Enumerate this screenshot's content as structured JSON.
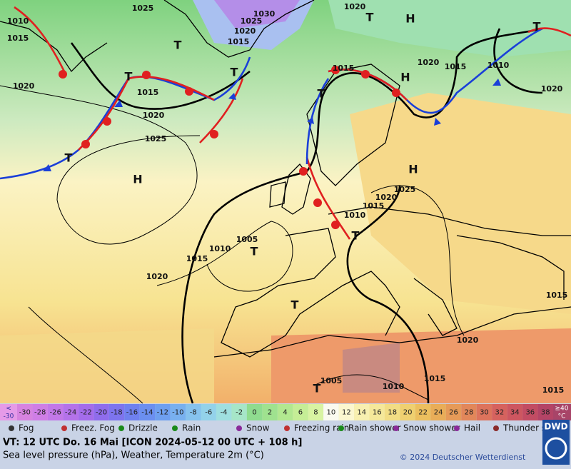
{
  "map": {
    "isobar_labels": [
      1025,
      1020,
      1010,
      1015,
      1030,
      1025,
      1020,
      1015,
      1020,
      1015,
      1020,
      1025,
      1015,
      1020,
      1015,
      1010,
      1020,
      1025,
      1020,
      1015,
      1010,
      1005,
      1010,
      1015,
      1020,
      1020,
      1015,
      1005,
      1010,
      1015,
      1015
    ],
    "pressure_centers": [
      "H",
      "T",
      "T",
      "T",
      "T",
      "H",
      "T",
      "H",
      "H",
      "T",
      "T",
      "T",
      "T",
      "T",
      "T"
    ]
  },
  "colorbar": {
    "below_symbol": "<",
    "below_value": -30,
    "values": [
      -30,
      -28,
      -26,
      -24,
      -22,
      -20,
      -18,
      -16,
      -14,
      -12,
      -10,
      -8,
      -6,
      -4,
      -2,
      0,
      2,
      4,
      6,
      8,
      10,
      12,
      14,
      16,
      18,
      20,
      22,
      24,
      26,
      28,
      30,
      32,
      34,
      36,
      38
    ],
    "above_value": "≥40",
    "above_unit": "°C"
  },
  "legend": [
    "Fog",
    "Freez. Fog",
    "Drizzle",
    "Rain",
    "Snow",
    "Freezing rain",
    "Rain shower",
    "Snow shower",
    "Hail",
    "Thunder storm"
  ],
  "footer": {
    "valid_time": "VT: 12 UTC Do.  16 Mai [ICON 2024-05-12  00 UTC + 108 h]",
    "description": "Sea level pressure (hPa), Weather, Temperature 2m (°C)",
    "copyright": "© 2024 Deutscher Wetterdienst",
    "logo": "DWD"
  }
}
